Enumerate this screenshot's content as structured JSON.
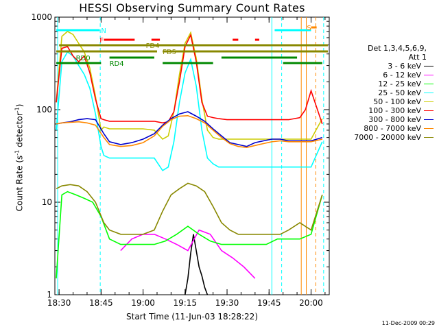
{
  "chart_data": {
    "type": "line",
    "title": "HESSI Observing Summary Count Rates",
    "xlabel": "Start Time (11-Jun-03 18:28:22)",
    "ylabel": "Count Rate (s",
    "ylabel_sup": "-1",
    "ylabel_tail": " detector",
    "ylabel_close": ")",
    "y_scale": "log",
    "ylim": [
      1,
      1000
    ],
    "xlim_minutes": [
      18.5,
      66.5
    ],
    "x_ticks": [
      {
        "m": 30,
        "label": "18:30"
      },
      {
        "m": 45,
        "label": "18:45"
      },
      {
        "m": 60,
        "label": "19:00"
      },
      {
        "m": 75,
        "label": "19:15"
      },
      {
        "m": 90,
        "label": "19:30"
      },
      {
        "m": 105,
        "label": "19:45"
      },
      {
        "m": 120,
        "label": "20:00"
      }
    ],
    "y_ticks": [
      {
        "v": 1,
        "label": "1"
      },
      {
        "v": 10,
        "label": "10"
      },
      {
        "v": 100,
        "label": "100"
      },
      {
        "v": 1000,
        "label": "1000"
      }
    ],
    "legend_title": "Det 1,3,4,5,6,9,",
    "legend_subtitle": "Att 1",
    "series": [
      {
        "name": "3 - 6 keV",
        "color": "#000000",
        "x": [
          75,
          76,
          77,
          78,
          79,
          80,
          81,
          82,
          83
        ],
        "y": [
          1,
          1.5,
          2.8,
          4.5,
          3,
          2,
          1.6,
          1.2,
          1
        ]
      },
      {
        "name": "6 - 12 keV",
        "color": "#ff00ff",
        "x": [
          52,
          56,
          60,
          64,
          68,
          72,
          76,
          80,
          84,
          88,
          92,
          96,
          100
        ],
        "y": [
          3,
          4,
          4.5,
          4.5,
          4,
          3.5,
          3,
          5,
          4.5,
          3,
          2.5,
          2,
          1.5
        ]
      },
      {
        "name": "12 - 25 keV",
        "color": "#00ff00",
        "x": [
          29,
          31,
          33,
          36,
          39,
          42,
          45,
          48,
          52,
          56,
          60,
          64,
          68,
          72,
          76,
          80,
          84,
          88,
          92,
          96,
          100,
          104,
          108,
          112,
          116,
          120,
          124
        ],
        "y": [
          1.5,
          12,
          13,
          12,
          11,
          10,
          7,
          4,
          3.5,
          3.5,
          3.5,
          3.5,
          3.8,
          4.5,
          5.5,
          4.5,
          3.8,
          3.5,
          3.5,
          3.5,
          3.5,
          3.5,
          4,
          4,
          4,
          4.5,
          12
        ]
      },
      {
        "name": "25 - 50 keV",
        "color": "#00ffff",
        "x": [
          29,
          31,
          33,
          35,
          37,
          39,
          41,
          43,
          45,
          46,
          48,
          52,
          56,
          60,
          64,
          67,
          69,
          71,
          73,
          75,
          77,
          79,
          81,
          83,
          85,
          87,
          90,
          93,
          96,
          100,
          104,
          108,
          112,
          116,
          118,
          120,
          124
        ],
        "y": [
          60,
          330,
          420,
          380,
          300,
          240,
          170,
          90,
          40,
          32,
          30,
          30,
          30,
          30,
          30,
          22,
          24,
          45,
          120,
          250,
          350,
          180,
          60,
          30,
          26,
          24,
          24,
          24,
          24,
          24,
          24,
          24,
          24,
          24,
          24,
          24,
          45
        ]
      },
      {
        "name": "50 - 100 keV",
        "color": "#cccc00",
        "x": [
          29,
          31,
          33,
          35,
          37,
          39,
          41,
          43,
          45,
          46,
          48,
          52,
          56,
          60,
          64,
          67,
          69,
          71,
          73,
          75,
          77,
          79,
          81,
          83,
          85,
          87,
          90,
          93,
          96,
          100,
          104,
          108,
          112,
          116,
          118,
          120,
          124
        ],
        "y": [
          120,
          620,
          700,
          650,
          520,
          420,
          280,
          140,
          60,
          65,
          62,
          62,
          62,
          62,
          60,
          48,
          52,
          95,
          240,
          520,
          680,
          360,
          130,
          60,
          50,
          48,
          48,
          48,
          48,
          48,
          48,
          48,
          48,
          48,
          48,
          48,
          80
        ]
      },
      {
        "name": "100 - 300 keV",
        "color": "#ff0000",
        "x": [
          29,
          31,
          33,
          35,
          37,
          39,
          41,
          43,
          45,
          46,
          48,
          52,
          56,
          60,
          64,
          67,
          69,
          71,
          73,
          75,
          77,
          79,
          81,
          83,
          85,
          87,
          90,
          93,
          96,
          100,
          104,
          108,
          112,
          116,
          118,
          120,
          124
        ],
        "y": [
          120,
          460,
          480,
          380,
          330,
          380,
          250,
          130,
          80,
          78,
          75,
          75,
          75,
          75,
          75,
          72,
          74,
          95,
          200,
          480,
          640,
          330,
          120,
          85,
          82,
          80,
          78,
          78,
          78,
          78,
          78,
          78,
          78,
          82,
          100,
          160,
          70
        ]
      },
      {
        "name": "300 - 800 keV",
        "color": "#0000cc",
        "x": [
          29,
          31,
          34,
          37,
          40,
          43,
          46,
          48,
          52,
          56,
          60,
          64,
          67,
          70,
          73,
          76,
          79,
          82,
          85,
          88,
          91,
          94,
          97,
          100,
          103,
          106,
          109,
          112,
          116,
          120,
          124
        ],
        "y": [
          70,
          72,
          74,
          78,
          80,
          78,
          55,
          45,
          42,
          44,
          48,
          55,
          68,
          80,
          90,
          95,
          85,
          75,
          62,
          52,
          44,
          42,
          40,
          44,
          46,
          48,
          48,
          46,
          46,
          46,
          50
        ]
      },
      {
        "name": "800 - 7000 keV",
        "color": "#ff8800",
        "x": [
          29,
          31,
          34,
          37,
          40,
          43,
          46,
          48,
          52,
          56,
          60,
          64,
          67,
          70,
          73,
          76,
          79,
          82,
          85,
          88,
          91,
          94,
          97,
          100,
          103,
          106,
          109,
          112,
          116,
          120,
          124
        ],
        "y": [
          70,
          72,
          73,
          74,
          72,
          68,
          50,
          42,
          40,
          41,
          44,
          52,
          66,
          78,
          85,
          86,
          80,
          72,
          60,
          50,
          43,
          40,
          39,
          41,
          43,
          45,
          46,
          45,
          45,
          45,
          48
        ]
      },
      {
        "name": "7000 - 20000 keV",
        "color": "#888800",
        "x": [
          29,
          31,
          34,
          37,
          40,
          43,
          46,
          48,
          52,
          56,
          60,
          64,
          67,
          70,
          73,
          76,
          79,
          82,
          85,
          88,
          91,
          94,
          97,
          100,
          103,
          106,
          109,
          112,
          116,
          120,
          124
        ],
        "y": [
          14,
          15,
          15.5,
          15,
          13,
          10,
          6,
          5,
          4.5,
          4.5,
          4.5,
          5,
          8,
          12,
          14,
          16,
          15,
          13,
          9,
          6,
          5,
          4.5,
          4.5,
          4.5,
          4.5,
          4.5,
          4.5,
          5,
          6,
          5,
          12
        ]
      }
    ],
    "flag_bars": [
      {
        "label": "N",
        "color": "#00ffff",
        "y_row": 1,
        "segments": [
          [
            29,
            44.5
          ],
          [
            107,
            120
          ]
        ]
      },
      {
        "label": "F",
        "color": "#ff0000",
        "y_row": 2,
        "segments": [
          [
            46,
            57
          ],
          [
            63,
            66
          ],
          [
            92,
            94
          ],
          [
            100,
            101.5
          ]
        ]
      },
      {
        "label": "S",
        "color": "#ff8800",
        "y_row": 0,
        "segments": [
          [
            120,
            122
          ]
        ]
      },
      {
        "label": "FD4",
        "color": "#888800",
        "y_row": 3,
        "segments": [
          [
            30,
            126
          ]
        ]
      },
      {
        "label": "FD5",
        "color": "#888800",
        "y_row": 4,
        "segments": [
          [
            29,
            65
          ],
          [
            67,
            126
          ]
        ]
      },
      {
        "label": "RD0",
        "color": "#008800",
        "y_row": 5,
        "segments": [
          [
            48,
            64
          ],
          [
            88,
            115
          ]
        ]
      },
      {
        "label": "RD4",
        "color": "#008800",
        "y_row": 6,
        "segments": [
          [
            29,
            45
          ],
          [
            67,
            85
          ],
          [
            110,
            124
          ]
        ]
      }
    ],
    "flag_label_positions": [
      {
        "label": "N",
        "m": 45
      },
      {
        "label": "F",
        "m": 44.5
      },
      {
        "label": "S",
        "m": 118.5
      },
      {
        "label": "FD4",
        "m": 61
      },
      {
        "label": "FD5",
        "m": 67
      },
      {
        "label": "RD0",
        "m": 36
      },
      {
        "label": "RD4",
        "m": 48
      }
    ],
    "vlines_dashed_cyan": [
      44.7,
      109.5,
      124.5
    ],
    "vlines_solid_cyan": [
      29.5,
      106
    ],
    "vlines_orange": [
      116.5,
      118.3,
      121.7
    ]
  },
  "footer": {
    "stamp": "11-Dec-2009 00:29"
  }
}
